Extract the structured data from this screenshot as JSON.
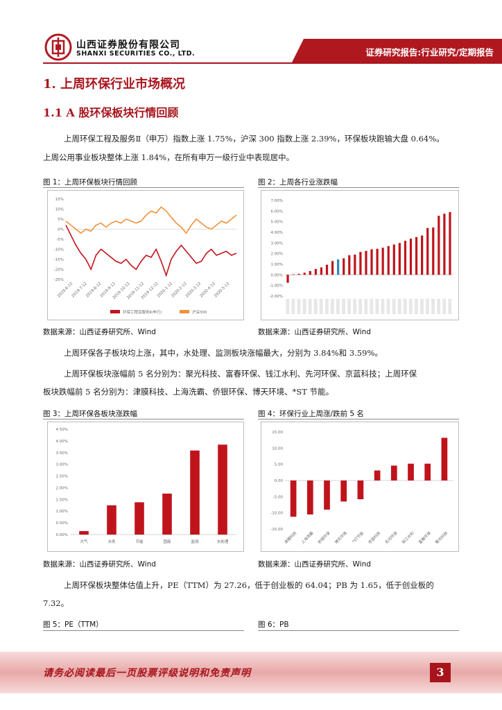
{
  "header": {
    "company_cn": "山西证券股份有限公司",
    "company_en": "SHANXI SECURITIES CO., LTD.",
    "report_type": "证券研究报告:行业研究/定期报告"
  },
  "section1_title": "1. 上周环保行业市场概况",
  "section11_title": "1.1 A 股环保板块行情回顾",
  "para1": "上周环保工程及服务Ⅱ（申万）指数上涨 1.75%，沪深 300 指数上涨 2.39%，环保板块跑输大盘 0.64%。",
  "para2": "上周公用事业板块整体上涨 1.84%，在所有申万一级行业中表现居中。",
  "para3": "上周环保各子板块均上涨，其中，水处理、监测板块涨幅最大，分别为 3.84%和 3.59%。",
  "para4a": "上周环保板块涨幅前 5 名分别为：聚光科技、富春环保、钱江水利、先河环保、京蓝科技；上周环保",
  "para4b": "板块跌幅前 5 名分别为：津膜科技、上海洗霸、侨银环保、博天环境、*ST 节能。",
  "para5a": "上周环保板块整体估值上升，PE（TTM）为 27.26，低于创业板的 64.04；PB 为 1.65，低于创业板的",
  "para5b": "7.32。",
  "figures": {
    "fig1_title": "图 1：上周环保板块行情回顾",
    "fig2_title": "图 2：上周各行业涨跌幅",
    "fig3_title": "图 3：上周环保各板块涨跌幅",
    "fig4_title": "图 4：环保行业上周涨/跌前 5 名",
    "fig5_title": "图 5：PE（TTM）",
    "fig6_title": "图 6：PB",
    "source": "数据来源：山西证券研究所、Wind"
  },
  "footer": {
    "disclaimer": "请务必阅读最后一页股票评级说明和免责声明",
    "page": "3"
  },
  "chart_data": [
    {
      "type": "line",
      "y_ticks": [
        "15%",
        "10%",
        "5%",
        "0%",
        "-5%",
        "-10%",
        "-15%",
        "-20%",
        "-25%"
      ],
      "ylim": [
        -25,
        15
      ],
      "x_ticks": [
        "2019-6-12",
        "2019-7-12",
        "2019-8-12",
        "2019-9-12",
        "2019-10-12",
        "2019-11-12",
        "2019-12-12",
        "2020-1-12",
        "2020-2-12",
        "2020-3-12",
        "2020-4-12",
        "2020-5-12"
      ],
      "series": [
        {
          "name": "环保工程及服务Ⅱ(申万)",
          "color": "#c0141c",
          "values": [
            2,
            -3,
            -8,
            -12,
            -15,
            -20,
            -13,
            -10,
            -12,
            -14,
            -16,
            -17,
            -15,
            -18,
            -20,
            -16,
            -13,
            -14,
            -10,
            -16,
            -23,
            -15,
            -11,
            -8,
            -11,
            -14,
            -17,
            -16,
            -12,
            -10,
            -13,
            -12,
            -11,
            -13,
            -12
          ]
        },
        {
          "name": "沪深300",
          "color": "#f0913c",
          "values": [
            4,
            2,
            0,
            -2,
            0,
            -1,
            2,
            3,
            1,
            3,
            4,
            3,
            5,
            4,
            3,
            4,
            7,
            9,
            8,
            11,
            9,
            6,
            3,
            1,
            -2,
            2,
            5,
            3,
            1,
            0,
            2,
            4,
            3,
            5,
            7
          ]
        }
      ]
    },
    {
      "type": "bar",
      "ylim": [
        -2,
        7
      ],
      "y_ticks": [
        "7.00%",
        "6.00%",
        "5.00%",
        "4.00%",
        "3.00%",
        "2.00%",
        "1.00%",
        "0.00%",
        "-1.00%",
        "-2.00%"
      ],
      "values": [
        -0.75,
        0.05,
        0.1,
        0.2,
        0.35,
        0.55,
        0.7,
        0.95,
        1.3,
        1.45,
        1.55,
        1.84,
        1.9,
        2.15,
        2.25,
        2.4,
        2.45,
        2.55,
        2.7,
        2.85,
        3.0,
        3.2,
        3.4,
        3.55,
        3.7,
        4.4,
        4.45,
        5.55,
        5.75,
        5.9
      ],
      "highlight_index": 9,
      "highlight_color": "#2e86c1",
      "color": "#c0141c"
    },
    {
      "type": "bar",
      "ylim": [
        0,
        4.5
      ],
      "y_ticks": [
        "4.50%",
        "4.00%",
        "3.50%",
        "3.00%",
        "2.50%",
        "2.00%",
        "1.50%",
        "1.00%",
        "0.50%",
        "0.00%"
      ],
      "categories": [
        "大气",
        "水务",
        "节能",
        "固废",
        "监测",
        "水处理"
      ],
      "values": [
        0.15,
        1.25,
        1.38,
        1.75,
        3.59,
        3.84
      ],
      "color": "#c0141c"
    },
    {
      "type": "bar",
      "ylim": [
        -15,
        15
      ],
      "y_ticks": [
        "15.00",
        "10.00",
        "5.00",
        "0.00",
        "-5.00",
        "-10.00",
        "-15.00"
      ],
      "categories": [
        "津膜科技",
        "上海洗霸",
        "侨银环保",
        "博天环境",
        "*ST节能",
        "京蓝科技",
        "先河环保",
        "钱江水利",
        "富春环保",
        "聚光科技"
      ],
      "values": [
        -11.2,
        -10.5,
        -9.0,
        -6.5,
        -5.8,
        3.1,
        4.6,
        5.2,
        5.2,
        13.2
      ],
      "color": "#c0141c"
    }
  ]
}
